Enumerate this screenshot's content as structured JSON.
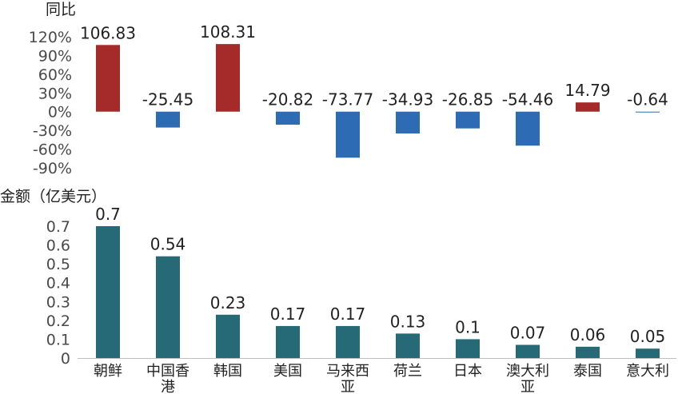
{
  "chart_data": [
    {
      "type": "bar",
      "ylabel": "同比",
      "ylim": [
        -90,
        120
      ],
      "yticks": [
        "120%",
        "90%",
        "60%",
        "30%",
        "0%",
        "-30%",
        "-60%",
        "-90%"
      ],
      "categories": [
        "朝鲜",
        "中国香港",
        "韩国",
        "美国",
        "马来西亚",
        "荷兰",
        "日本",
        "澳大利亚",
        "泰国",
        "意大利"
      ],
      "values": [
        106.83,
        -25.45,
        108.31,
        -20.82,
        -73.77,
        -34.93,
        -26.85,
        -54.46,
        14.79,
        -0.64
      ],
      "labels": [
        "106.83",
        "-25.45",
        "108.31",
        "-20.82",
        "-73.77",
        "-34.93",
        "-26.85",
        "-54.46",
        "14.79",
        "-0.64"
      ],
      "colors": {
        "positive": "#a52a2a",
        "negative": "#2e6bb5"
      },
      "grid": false
    },
    {
      "type": "bar",
      "ylabel": "金额（亿美元）",
      "ylim": [
        0,
        0.7
      ],
      "yticks": [
        "0.7",
        "0.6",
        "0.5",
        "0.4",
        "0.3",
        "0.2",
        "0.1",
        "0"
      ],
      "categories": [
        "朝鲜",
        "中国香港",
        "韩国",
        "美国",
        "马来西亚",
        "荷兰",
        "日本",
        "澳大利亚",
        "泰国",
        "意大利"
      ],
      "category_lines": [
        [
          "朝鲜"
        ],
        [
          "中国香",
          "港"
        ],
        [
          "韩国"
        ],
        [
          "美国"
        ],
        [
          "马来西",
          "亚"
        ],
        [
          "荷兰"
        ],
        [
          "日本"
        ],
        [
          "澳大利",
          "亚"
        ],
        [
          "泰国"
        ],
        [
          "意大利"
        ]
      ],
      "values": [
        0.7,
        0.54,
        0.23,
        0.17,
        0.17,
        0.13,
        0.1,
        0.07,
        0.06,
        0.05
      ],
      "labels": [
        "0.7",
        "0.54",
        "0.23",
        "0.17",
        "0.17",
        "0.13",
        "0.1",
        "0.07",
        "0.06",
        "0.05"
      ],
      "colors": {
        "bar": "#266a78",
        "axis": "#bfbfbf"
      },
      "grid": false
    }
  ]
}
